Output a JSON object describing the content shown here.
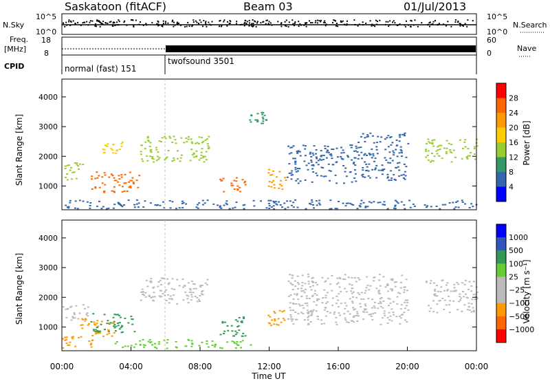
{
  "header": {
    "station": "Saskatoon (fitACF)",
    "beam": "Beam 03",
    "date": "01/Jul/2013"
  },
  "chart_data": [
    {
      "type": "line",
      "panel": "noise",
      "left_label": "N.Sky",
      "right_label": "N.Search",
      "left_ticks": [
        "10^5",
        "10^0"
      ],
      "right_ticks": [
        "10^5",
        "10^0"
      ]
    },
    {
      "type": "line",
      "panel": "frequency",
      "left_label_top": "Freq.",
      "left_label_bottom": "[MHz]",
      "right_label": "Nave",
      "left_ticks": [
        "18",
        "8"
      ],
      "right_ticks": [
        "60",
        "0"
      ],
      "freq_mhz_first": 11,
      "freq_mhz_second": 11.3,
      "nave_first": 40,
      "nave_second": 34
    },
    {
      "type": "table",
      "panel": "cpid",
      "left_label": "CPID",
      "modes": [
        {
          "name": "normal (fast) 151",
          "start": "00:00",
          "end": "06:00"
        },
        {
          "name": "twofsound 3501",
          "start": "06:00",
          "end": "24:00"
        }
      ]
    },
    {
      "type": "heatmap",
      "panel": "power",
      "ylabel": "Slant Range [km]",
      "colorbar_label": "Power [dB]",
      "yticks": [
        1000,
        2000,
        3000,
        4000
      ],
      "ylim": [
        200,
        4600
      ],
      "colorbar_ticks": [
        "28",
        "24",
        "20",
        "16",
        "12",
        "8",
        "4"
      ],
      "colorbar_colors": [
        "#ff0000",
        "#ff6600",
        "#ff9900",
        "#ffcc00",
        "#99cc33",
        "#339966",
        "#3366aa",
        "#0000ff"
      ],
      "regions": [
        {
          "t0": 0.0,
          "t1": 1.2,
          "r0": 1200,
          "r1": 1800,
          "p": 14
        },
        {
          "t0": 1.6,
          "t1": 4.5,
          "r0": 800,
          "r1": 1500,
          "p": 24
        },
        {
          "t0": 2.3,
          "t1": 3.5,
          "r0": 2100,
          "r1": 2500,
          "p": 16
        },
        {
          "t0": 4.5,
          "t1": 8.5,
          "r0": 1800,
          "r1": 2700,
          "p": 12
        },
        {
          "t0": 9.0,
          "t1": 10.6,
          "r0": 800,
          "r1": 1300,
          "p": 24
        },
        {
          "t0": 10.8,
          "t1": 11.8,
          "r0": 3100,
          "r1": 3500,
          "p": 8
        },
        {
          "t0": 11.9,
          "t1": 13.0,
          "r0": 900,
          "r1": 1600,
          "p": 20
        },
        {
          "t0": 13.0,
          "t1": 17.0,
          "r0": 1100,
          "r1": 2400,
          "p": 6
        },
        {
          "t0": 17.0,
          "t1": 20.0,
          "r0": 1200,
          "r1": 2800,
          "p": 5
        },
        {
          "t0": 21.0,
          "t1": 24.0,
          "r0": 1800,
          "r1": 2600,
          "p": 14
        },
        {
          "t0": 0.0,
          "t1": 24.0,
          "r0": 250,
          "r1": 550,
          "p": 6
        }
      ]
    },
    {
      "type": "heatmap",
      "panel": "velocity",
      "ylabel": "Slant Range [km]",
      "xlabel": "Time UT",
      "colorbar_label": "Velocity [m s⁻¹]",
      "yticks": [
        1000,
        2000,
        3000,
        4000
      ],
      "ylim": [
        200,
        4600
      ],
      "xticks": [
        "00:00",
        "04:00",
        "08:00",
        "12:00",
        "16:00",
        "20:00",
        "00:00"
      ],
      "xlim": [
        0,
        24
      ],
      "colorbar_ticks": [
        "1000",
        "500",
        "100",
        "25",
        "−25",
        "−100",
        "−500",
        "−1000"
      ],
      "colorbar_colors": [
        "#0000ff",
        "#3355bb",
        "#339955",
        "#66cc33",
        "#bbbbbb",
        "#bbbbbb",
        "#ff9900",
        "#ff6600",
        "#ff0000"
      ],
      "regions": [
        {
          "t0": 0.0,
          "t1": 1.5,
          "r0": 1200,
          "r1": 1800,
          "c": "#bbbbbb"
        },
        {
          "t0": 1.6,
          "t1": 4.3,
          "r0": 800,
          "r1": 1500,
          "c": "#339955"
        },
        {
          "t0": 1.0,
          "t1": 3.0,
          "r0": 700,
          "r1": 1300,
          "c": "#ff9900"
        },
        {
          "t0": 4.5,
          "t1": 8.5,
          "r0": 1800,
          "r1": 2700,
          "c": "#bbbbbb"
        },
        {
          "t0": 9.0,
          "t1": 10.6,
          "r0": 700,
          "r1": 1400,
          "c": "#339955"
        },
        {
          "t0": 11.9,
          "t1": 13.0,
          "r0": 1000,
          "r1": 1600,
          "c": "#ff9900"
        },
        {
          "t0": 13.0,
          "t1": 20.0,
          "r0": 1100,
          "r1": 2800,
          "c": "#bbbbbb"
        },
        {
          "t0": 21.0,
          "t1": 24.0,
          "r0": 1500,
          "r1": 2600,
          "c": "#bbbbbb"
        },
        {
          "t0": 3.0,
          "t1": 11.0,
          "r0": 300,
          "r1": 600,
          "c": "#66cc33"
        },
        {
          "t0": 0.0,
          "t1": 2.0,
          "r0": 300,
          "r1": 700,
          "c": "#ff9900"
        }
      ]
    }
  ]
}
